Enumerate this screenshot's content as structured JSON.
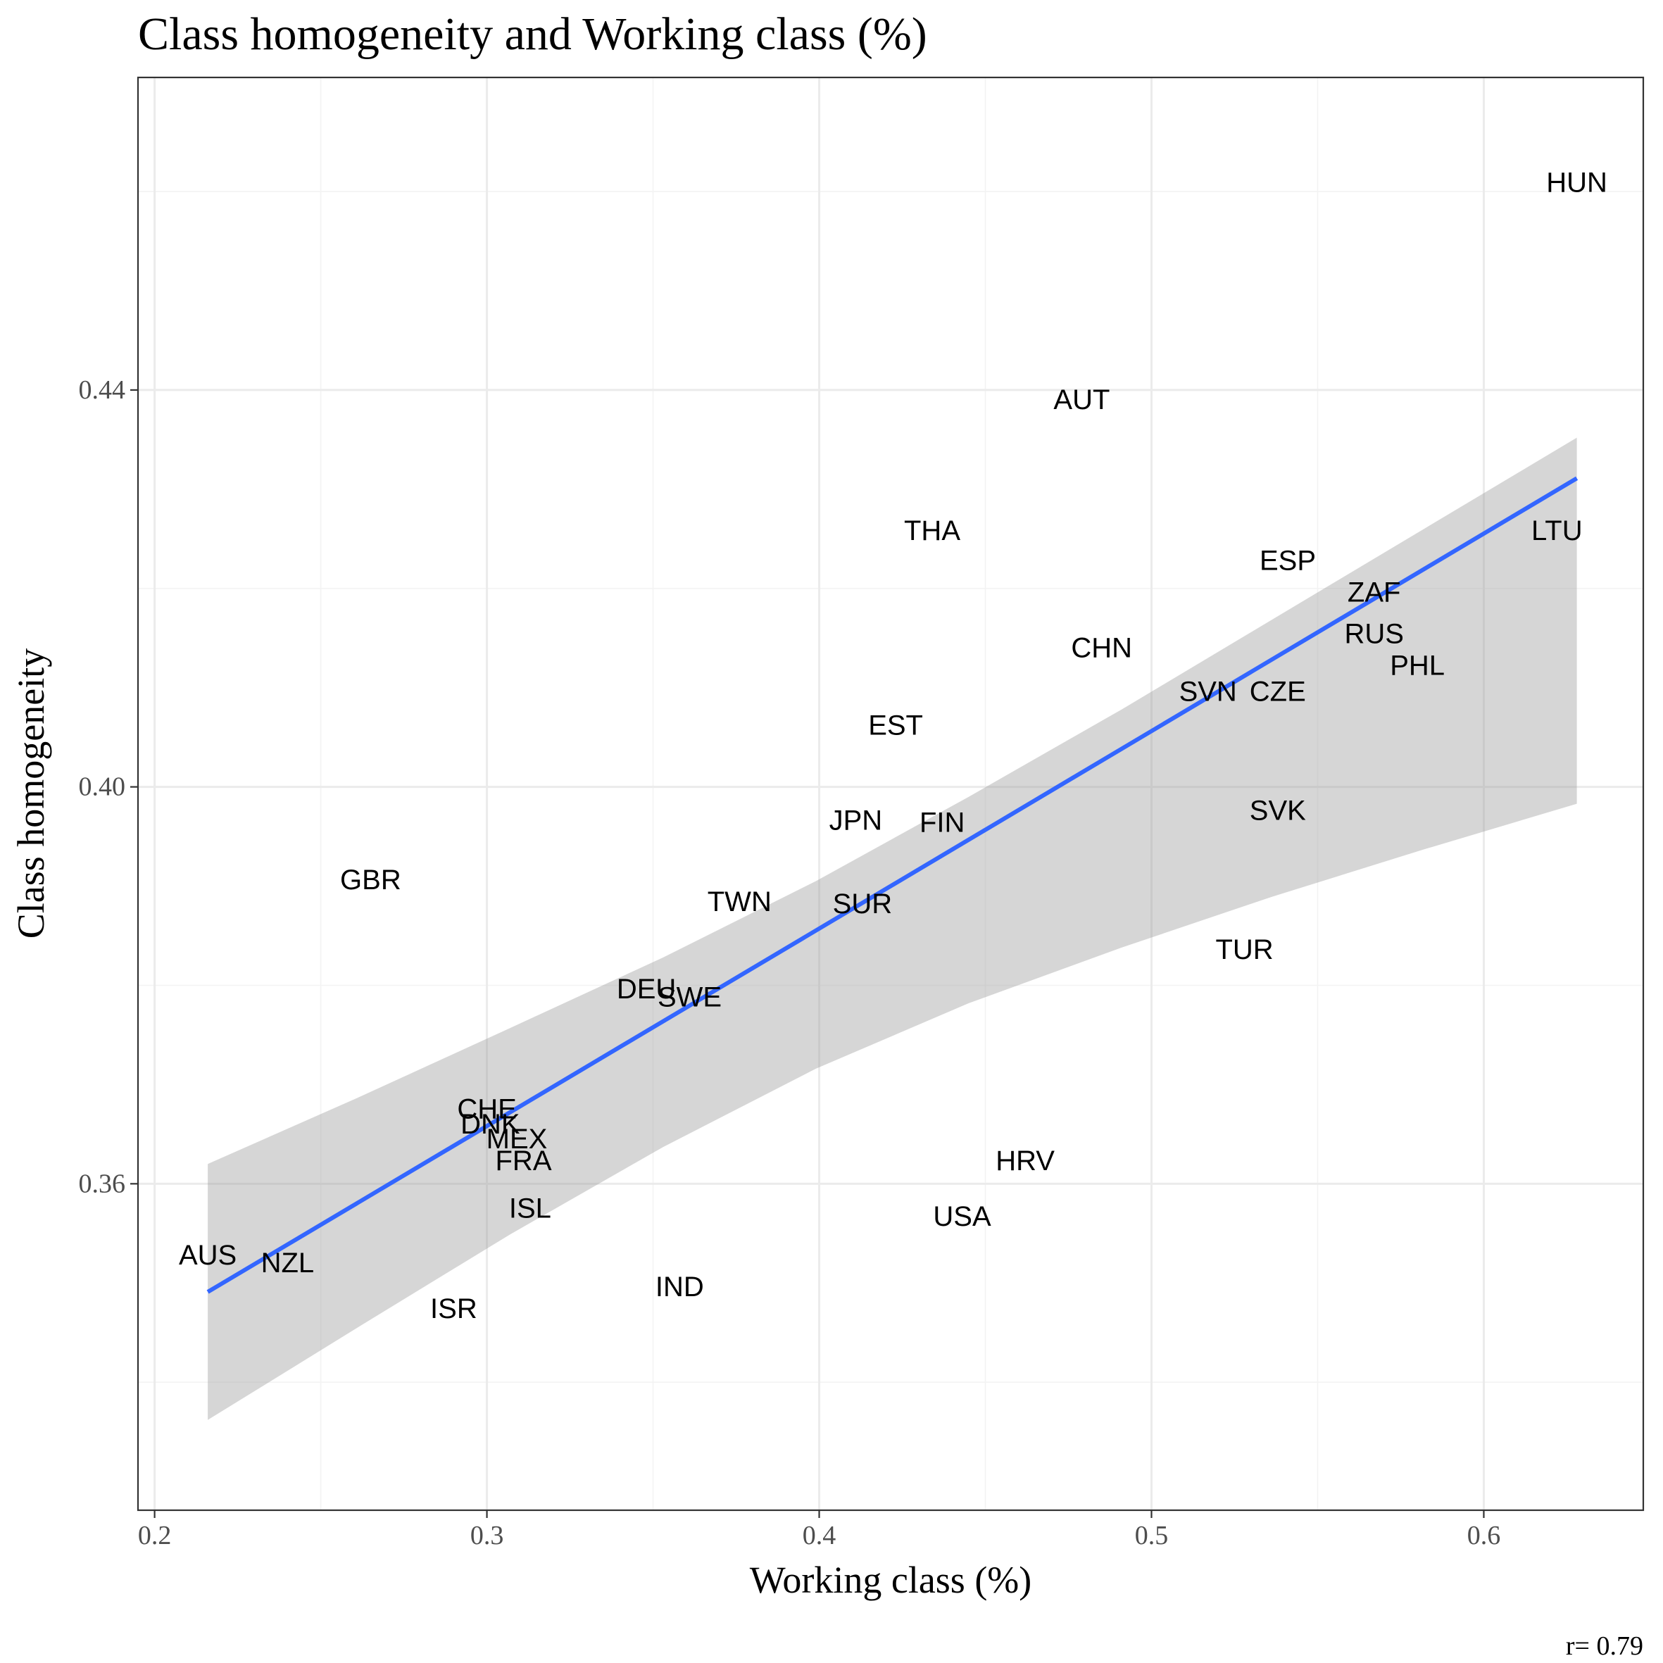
{
  "colors": {
    "fit_line": "#3366FF",
    "ribbon": "#999999",
    "background": "#ffffff",
    "grid": "#ebebeb",
    "text": "#000000"
  },
  "chart_data": {
    "type": "scatter",
    "title": "Class homogeneity and Working class (%)",
    "xlabel": "Working class (%)",
    "ylabel": "Class homogeneity",
    "caption": "r= 0.79",
    "xlim": [
      0.195,
      0.648
    ],
    "ylim": [
      0.3271,
      0.4715
    ],
    "x_ticks": [
      0.2,
      0.3,
      0.4,
      0.5,
      0.6
    ],
    "x_tick_labels": [
      "0.2",
      "0.3",
      "0.4",
      "0.5",
      "0.6"
    ],
    "y_ticks": [
      0.36,
      0.4,
      0.44
    ],
    "y_tick_labels": [
      "0.36",
      "0.40",
      "0.44"
    ],
    "grid": true,
    "legend": "none",
    "points": [
      {
        "label": "HUN",
        "x": 0.628,
        "y": 0.4609
      },
      {
        "label": "AUT",
        "x": 0.479,
        "y": 0.439
      },
      {
        "label": "THA",
        "x": 0.434,
        "y": 0.4258
      },
      {
        "label": "LTU",
        "x": 0.622,
        "y": 0.4258
      },
      {
        "label": "ESP",
        "x": 0.541,
        "y": 0.4228
      },
      {
        "label": "ZAF",
        "x": 0.567,
        "y": 0.4196
      },
      {
        "label": "RUS",
        "x": 0.567,
        "y": 0.4154
      },
      {
        "label": "CHN",
        "x": 0.485,
        "y": 0.414
      },
      {
        "label": "PHL",
        "x": 0.58,
        "y": 0.4122
      },
      {
        "label": "SVN",
        "x": 0.517,
        "y": 0.4096
      },
      {
        "label": "CZE",
        "x": 0.538,
        "y": 0.4096
      },
      {
        "label": "EST",
        "x": 0.423,
        "y": 0.4062
      },
      {
        "label": "SVK",
        "x": 0.538,
        "y": 0.3976
      },
      {
        "label": "JPN",
        "x": 0.411,
        "y": 0.3966
      },
      {
        "label": "FIN",
        "x": 0.437,
        "y": 0.3964
      },
      {
        "label": "GBR",
        "x": 0.265,
        "y": 0.3906
      },
      {
        "label": "TWN",
        "x": 0.376,
        "y": 0.3884
      },
      {
        "label": "SUR",
        "x": 0.413,
        "y": 0.3882
      },
      {
        "label": "TUR",
        "x": 0.528,
        "y": 0.3836
      },
      {
        "label": "DEU",
        "x": 0.348,
        "y": 0.3796
      },
      {
        "label": "SWE",
        "x": 0.361,
        "y": 0.3788
      },
      {
        "label": "CHE",
        "x": 0.3,
        "y": 0.3675
      },
      {
        "label": "DNK",
        "x": 0.301,
        "y": 0.366
      },
      {
        "label": "MEX",
        "x": 0.309,
        "y": 0.3645
      },
      {
        "label": "FRA",
        "x": 0.311,
        "y": 0.3623
      },
      {
        "label": "HRV",
        "x": 0.462,
        "y": 0.3623
      },
      {
        "label": "ISL",
        "x": 0.313,
        "y": 0.3575
      },
      {
        "label": "USA",
        "x": 0.443,
        "y": 0.3567
      },
      {
        "label": "AUS",
        "x": 0.216,
        "y": 0.3528
      },
      {
        "label": "NZL",
        "x": 0.24,
        "y": 0.352
      },
      {
        "label": "IND",
        "x": 0.358,
        "y": 0.3496
      },
      {
        "label": "ISR",
        "x": 0.29,
        "y": 0.3474
      }
    ],
    "fit": {
      "x": [
        0.216,
        0.628
      ],
      "y": [
        0.3491,
        0.4311
      ]
    },
    "confidence_band": {
      "x": [
        0.216,
        0.262,
        0.307,
        0.353,
        0.399,
        0.445,
        0.491,
        0.536,
        0.582,
        0.628
      ],
      "lower": [
        0.3362,
        0.3457,
        0.3549,
        0.3637,
        0.3716,
        0.3782,
        0.3838,
        0.3889,
        0.3937,
        0.3983
      ],
      "upper": [
        0.362,
        0.3688,
        0.3757,
        0.3828,
        0.3905,
        0.399,
        0.4078,
        0.4168,
        0.426,
        0.4352
      ]
    }
  }
}
